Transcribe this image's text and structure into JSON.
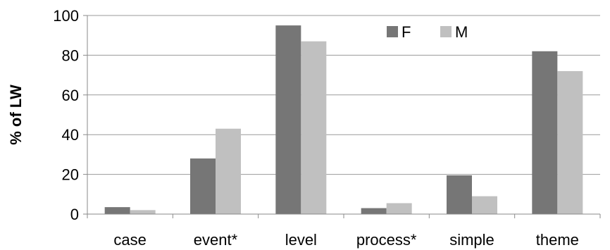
{
  "chart_data": {
    "type": "bar",
    "categories": [
      "case",
      "event*",
      "level",
      "process*",
      "simple",
      "theme"
    ],
    "series": [
      {
        "name": "F",
        "values": [
          3.5,
          28,
          95,
          3,
          19.5,
          82
        ],
        "color": "#767676"
      },
      {
        "name": "M",
        "values": [
          2,
          43,
          87,
          5.5,
          9,
          72
        ],
        "color": "#c0c0c0"
      }
    ],
    "title": "",
    "xlabel": "",
    "ylabel": "% of LW",
    "ylim": [
      0,
      100
    ],
    "yticks": [
      0,
      20,
      40,
      60,
      80,
      100
    ],
    "grid": true,
    "legend": "top-center"
  }
}
